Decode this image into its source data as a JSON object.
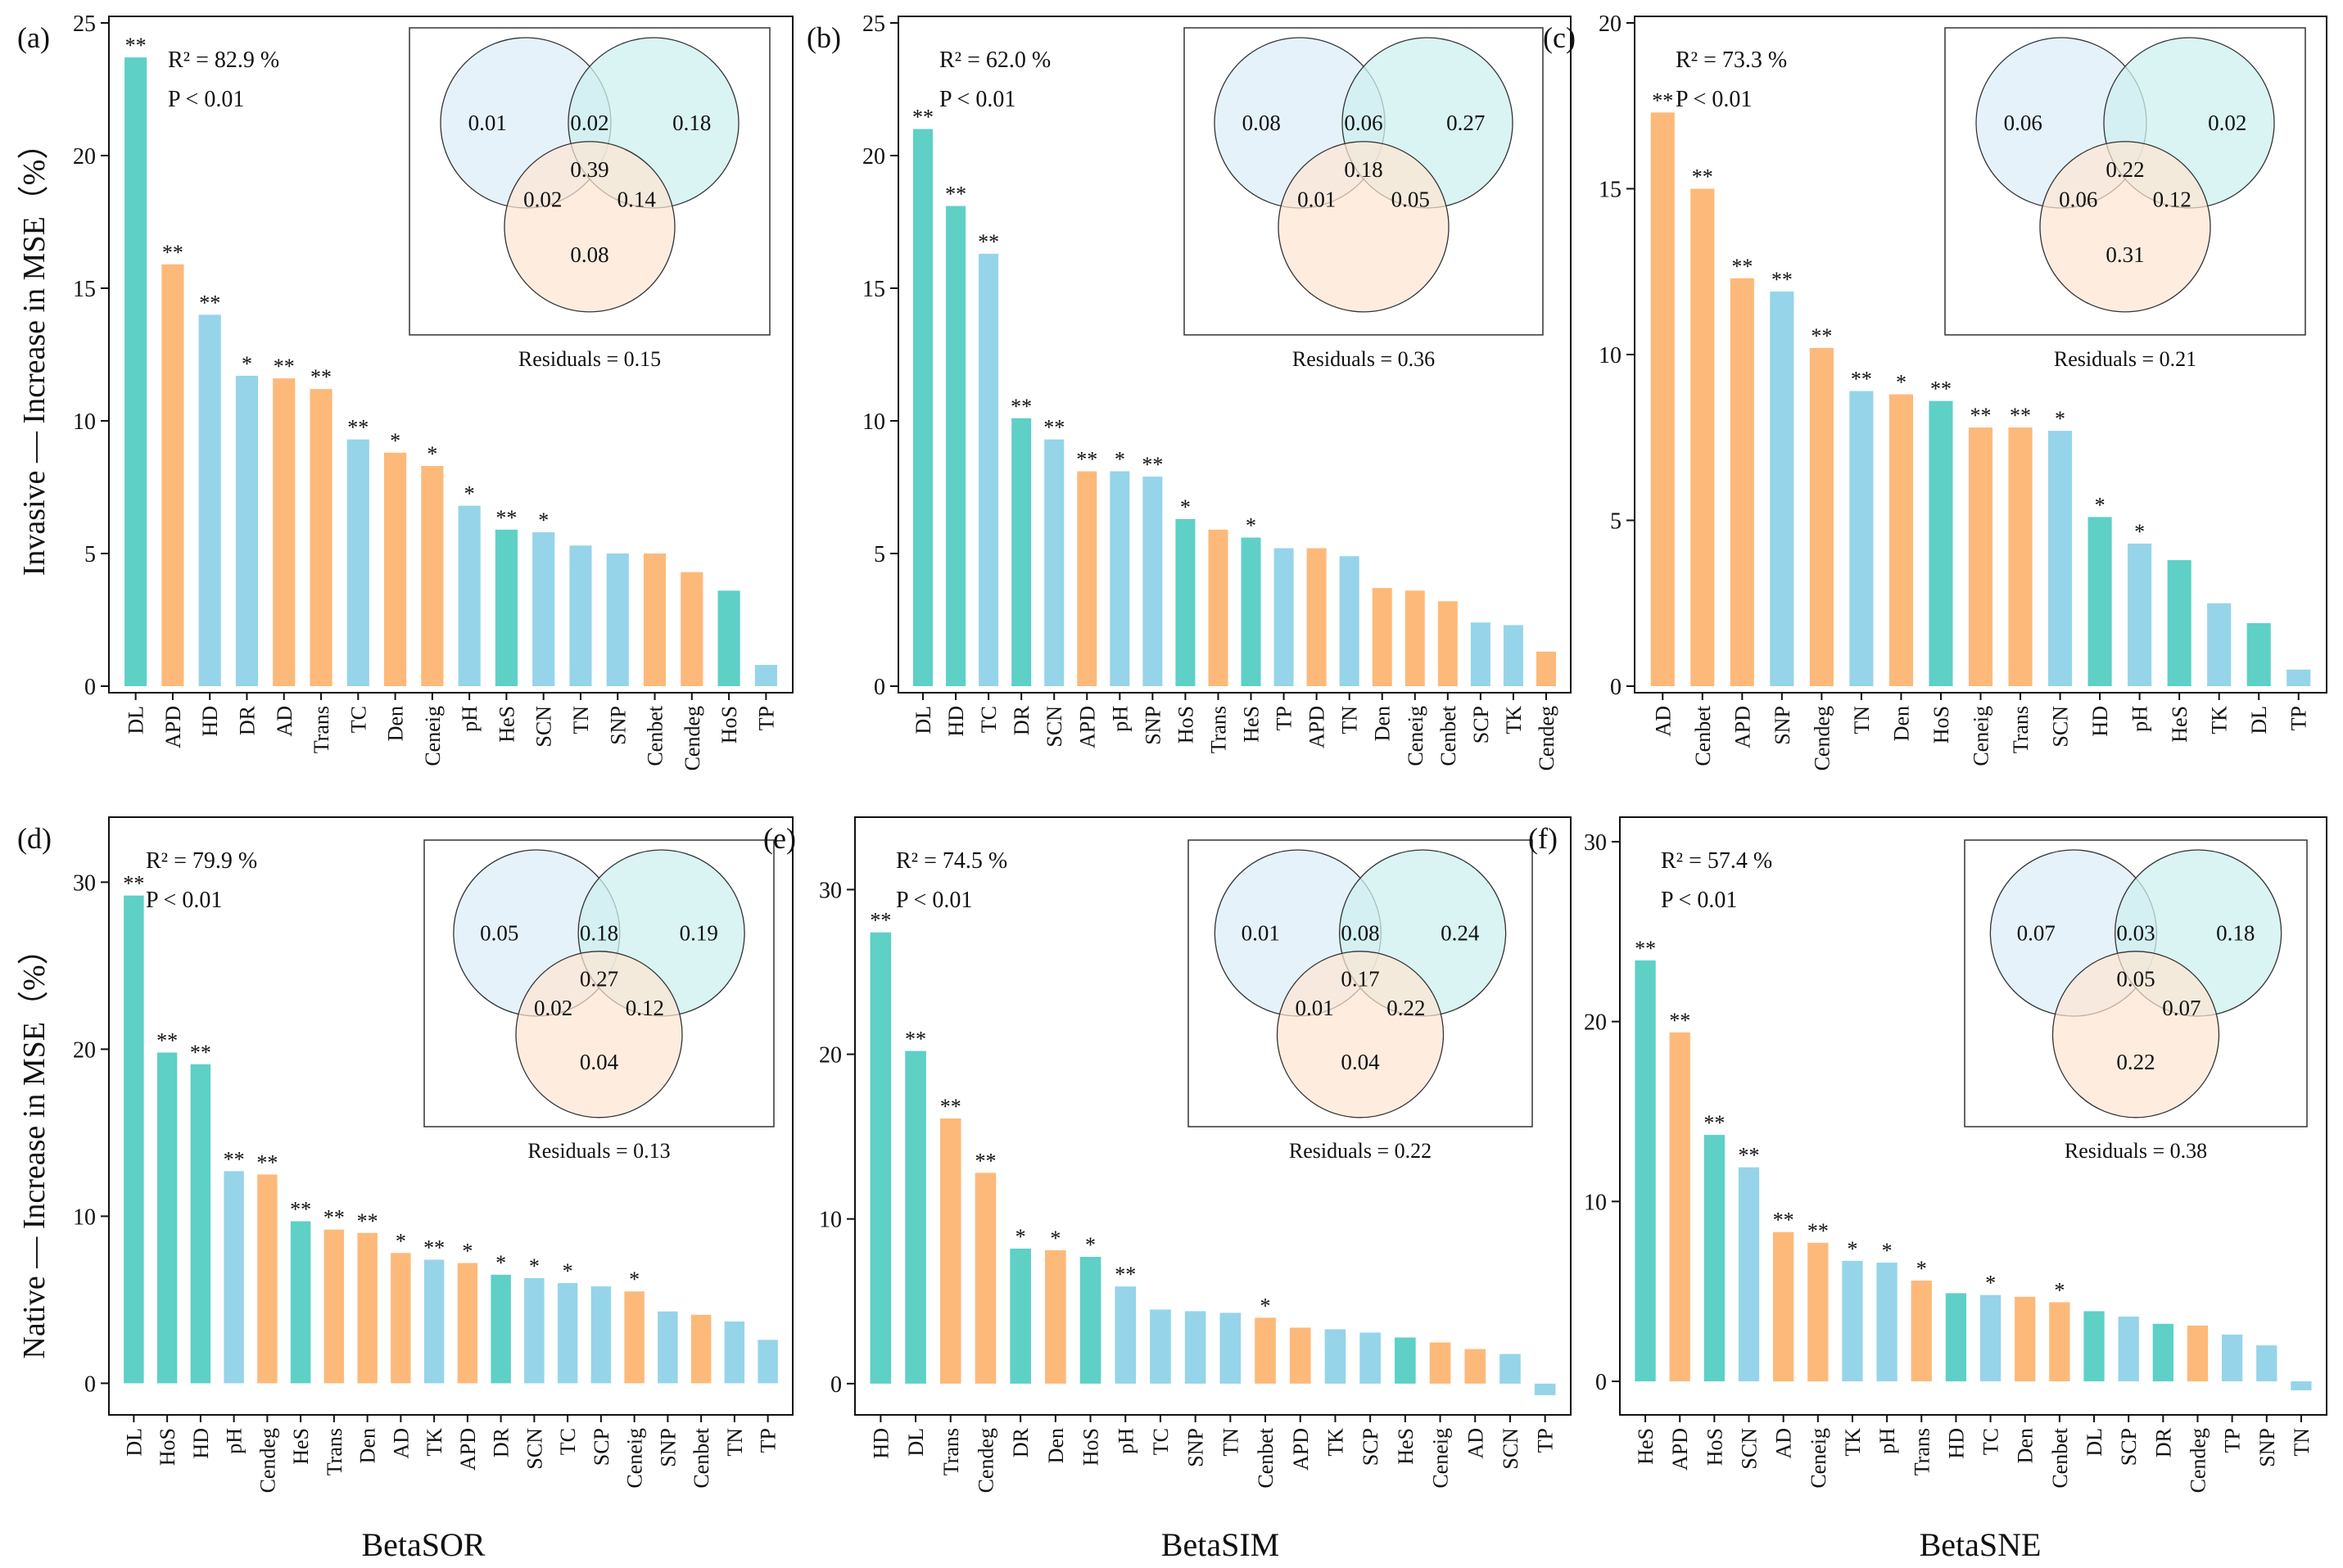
{
  "figure": {
    "row_labels": [
      "Invasive — Increase in MSE（%）",
      "Native — Increase in MSE（%）"
    ],
    "col_labels": [
      "BetaSOR",
      "BetaSIM",
      "BetaSNE"
    ]
  },
  "colors": {
    "teal": "#5ED0C6",
    "orange": "#FDB97A",
    "blue": "#96D4EA",
    "venn_blue": "#DDEEF8",
    "venn_teal": "#CDEFEF",
    "venn_orange": "#FDE6D2"
  },
  "chart_data": [
    {
      "type": "bar",
      "panel": "(a)",
      "ylim": [
        0,
        25
      ],
      "yticks": [
        0,
        5,
        10,
        15,
        20,
        25
      ],
      "r2": "R² =  82.9  %",
      "p": "P < 0.01",
      "categories": [
        "DL",
        "APD",
        "HD",
        "DR",
        "AD",
        "Trans",
        "TC",
        "Den",
        "Ceneig",
        "pH",
        "HeS",
        "SCN",
        "TN",
        "SNP",
        "Cenbet",
        "Cendeg",
        "HoS",
        "TP"
      ],
      "values": [
        23.7,
        15.9,
        14.0,
        11.7,
        11.6,
        11.2,
        9.3,
        8.8,
        8.3,
        6.8,
        5.9,
        5.8,
        5.3,
        5.0,
        5.0,
        4.3,
        3.6,
        0.8
      ],
      "colors": [
        "teal",
        "orange",
        "blue",
        "blue",
        "orange",
        "orange",
        "blue",
        "orange",
        "orange",
        "blue",
        "teal",
        "blue",
        "blue",
        "blue",
        "orange",
        "orange",
        "teal",
        "blue"
      ],
      "sig": [
        "**",
        "**",
        "**",
        "*",
        "**",
        "**",
        "**",
        "*",
        "*",
        "*",
        "**",
        "*",
        "",
        "",
        "",
        "",
        "",
        ""
      ],
      "venn": {
        "a": "0.01",
        "b": "0.18",
        "c": "0.08",
        "ab": "0.02",
        "ac": "0.02",
        "bc": "0.14",
        "abc": "0.39",
        "residuals": "Residuals = 0.15"
      }
    },
    {
      "type": "bar",
      "panel": "(b)",
      "ylim": [
        0,
        25
      ],
      "yticks": [
        0,
        5,
        10,
        15,
        20,
        25
      ],
      "r2": "R² = 62.0  %",
      "p": "P < 0.01",
      "categories": [
        "DL",
        "HD",
        "TC",
        "DR",
        "SCN",
        "APD",
        "pH",
        "SNP",
        "HoS",
        "Trans",
        "HeS",
        "TP",
        "APD",
        "TN",
        "Den",
        "Ceneig",
        "Cenbet",
        "SCP",
        "TK",
        "Cendeg"
      ],
      "values": [
        21.0,
        18.1,
        16.3,
        10.1,
        9.3,
        8.1,
        8.1,
        7.9,
        6.3,
        5.9,
        5.6,
        5.2,
        5.2,
        4.9,
        3.7,
        3.6,
        3.2,
        2.4,
        2.3,
        1.3
      ],
      "colors": [
        "teal",
        "teal",
        "blue",
        "teal",
        "blue",
        "orange",
        "blue",
        "blue",
        "teal",
        "orange",
        "teal",
        "blue",
        "orange",
        "blue",
        "orange",
        "orange",
        "orange",
        "blue",
        "blue",
        "orange"
      ],
      "sig": [
        "**",
        "**",
        "**",
        "**",
        "**",
        "**",
        "*",
        "**",
        "*",
        "",
        "*",
        "",
        "",
        "",
        "",
        "",
        "",
        "",
        "",
        ""
      ],
      "venn": {
        "a": "0.08",
        "b": "0.27",
        "c": "",
        "ab": "0.06",
        "ac": "0.01",
        "bc": "0.05",
        "abc": "0.18",
        "residuals": "Residuals = 0.36"
      }
    },
    {
      "type": "bar",
      "panel": "(c)",
      "ylim": [
        0,
        20
      ],
      "yticks": [
        0,
        5,
        10,
        15,
        20
      ],
      "r2": "R² = 73.3  %",
      "p": "P < 0.01",
      "categories": [
        "AD",
        "Cenbet",
        "APD",
        "SNP",
        "Cendeg",
        "TN",
        "Den",
        "HoS",
        "Ceneig",
        "Trans",
        "SCN",
        "HD",
        "pH",
        "HeS",
        "TK",
        "DL",
        "TP"
      ],
      "values": [
        17.3,
        15.0,
        12.3,
        11.9,
        10.2,
        8.9,
        8.8,
        8.6,
        7.8,
        7.8,
        7.7,
        5.1,
        4.3,
        3.8,
        2.5,
        1.9,
        0.5
      ],
      "colors": [
        "orange",
        "orange",
        "orange",
        "blue",
        "orange",
        "blue",
        "orange",
        "teal",
        "orange",
        "orange",
        "blue",
        "teal",
        "blue",
        "teal",
        "blue",
        "teal",
        "blue"
      ],
      "sig": [
        "**",
        "**",
        "**",
        "**",
        "**",
        "**",
        "*",
        "**",
        "**",
        "**",
        "*",
        "*",
        "*",
        "",
        "",
        "",
        ""
      ],
      "venn": {
        "a": "0.06",
        "b": "0.02",
        "c": "0.31",
        "ab": "",
        "ac": "0.06",
        "bc": "0.12",
        "abc": "0.22",
        "residuals": "Residuals = 0.21"
      }
    },
    {
      "type": "bar",
      "panel": "(d)",
      "ylim": [
        -1.5,
        35
      ],
      "yticks": [
        0,
        10,
        20,
        30
      ],
      "r2": "R² = 79.9   %",
      "p": "P < 0.01",
      "categories": [
        "DL",
        "HoS",
        "HD",
        "pH",
        "Cendeg",
        "HeS",
        "Trans",
        "Den",
        "AD",
        "TK",
        "APD",
        "DR",
        "SCN",
        "TC",
        "SCP",
        "Ceneig",
        "SNP",
        "Cenbet",
        "TN",
        "TP"
      ],
      "values": [
        29.2,
        19.8,
        19.1,
        12.7,
        12.5,
        9.7,
        9.2,
        9.0,
        7.8,
        7.4,
        7.2,
        6.5,
        6.3,
        6.0,
        5.8,
        5.5,
        4.3,
        4.1,
        3.7,
        2.6
      ],
      "colors": [
        "teal",
        "teal",
        "teal",
        "blue",
        "orange",
        "teal",
        "orange",
        "orange",
        "orange",
        "blue",
        "orange",
        "teal",
        "blue",
        "blue",
        "blue",
        "orange",
        "blue",
        "orange",
        "blue",
        "blue"
      ],
      "sig": [
        "**",
        "**",
        "**",
        "**",
        "**",
        "**",
        "**",
        "**",
        "*",
        "**",
        "*",
        "*",
        "*",
        "*",
        "",
        "*",
        "",
        "",
        "",
        ""
      ],
      "venn": {
        "a": "0.05",
        "b": "0.19",
        "c": "0.04",
        "ab": "0.18",
        "ac": "0.02",
        "bc": "0.12",
        "abc": "0.27",
        "residuals": "Residuals = 0.13"
      }
    },
    {
      "type": "bar",
      "panel": "(e)",
      "ylim": [
        -2,
        35
      ],
      "yticks": [
        0,
        10,
        20,
        30
      ],
      "r2": "R² = 74.5   %",
      "p": "P < 0.01",
      "categories": [
        "HD",
        "DL",
        "Trans",
        "Cendeg",
        "DR",
        "Den",
        "HoS",
        "pH",
        "TC",
        "SNP",
        "TN",
        "Cenbet",
        "APD",
        "TK",
        "SCP",
        "HeS",
        "Ceneig",
        "AD",
        "SCN",
        "TP"
      ],
      "values": [
        27.4,
        20.2,
        16.1,
        12.8,
        8.2,
        8.1,
        7.7,
        5.9,
        4.5,
        4.4,
        4.3,
        4.0,
        3.4,
        3.3,
        3.1,
        2.8,
        2.5,
        2.1,
        1.8,
        -0.7
      ],
      "colors": [
        "teal",
        "teal",
        "orange",
        "orange",
        "teal",
        "orange",
        "teal",
        "blue",
        "blue",
        "blue",
        "blue",
        "orange",
        "orange",
        "blue",
        "blue",
        "teal",
        "orange",
        "orange",
        "blue",
        "blue"
      ],
      "sig": [
        "**",
        "**",
        "**",
        "**",
        "*",
        "*",
        "*",
        "**",
        "",
        "",
        "",
        "*",
        "",
        "",
        "",
        "",
        "",
        "",
        "",
        ""
      ],
      "venn": {
        "a": "0.01",
        "b": "0.24",
        "c": "0.04",
        "ab": "0.08",
        "ac": "0.01",
        "bc": "0.22",
        "abc": "0.17",
        "residuals": "Residuals = 0.22"
      }
    },
    {
      "type": "bar",
      "panel": "(f)",
      "ylim": [
        -1.5,
        30
      ],
      "yticks": [
        0,
        10,
        20,
        30
      ],
      "r2": "R² = 57.4   %",
      "p": "P < 0.01",
      "categories": [
        "HeS",
        "APD",
        "HoS",
        "SCN",
        "AD",
        "Ceneig",
        "TK",
        "pH",
        "Trans",
        "HD",
        "TC",
        "Den",
        "Cenbet",
        "DL",
        "SCP",
        "DR",
        "Cendeg",
        "TP",
        "SNP",
        "TN"
      ],
      "values": [
        23.4,
        19.4,
        13.7,
        11.9,
        8.3,
        7.7,
        6.7,
        6.6,
        5.6,
        4.9,
        4.8,
        4.7,
        4.4,
        3.9,
        3.6,
        3.2,
        3.1,
        2.6,
        2.0,
        -0.5
      ],
      "colors": [
        "teal",
        "orange",
        "teal",
        "blue",
        "orange",
        "orange",
        "blue",
        "blue",
        "orange",
        "teal",
        "blue",
        "orange",
        "orange",
        "teal",
        "blue",
        "teal",
        "orange",
        "blue",
        "blue",
        "blue"
      ],
      "sig": [
        "**",
        "**",
        "**",
        "**",
        "**",
        "**",
        "*",
        "*",
        "*",
        "",
        "*",
        "",
        "*",
        "",
        "",
        "",
        "",
        "",
        "",
        ""
      ],
      "venn": {
        "a": "0.07",
        "b": "0.18",
        "c": "0.22",
        "ab": "0.03",
        "ac": "",
        "bc": "0.07",
        "abc": "0.05",
        "residuals": "Residuals = 0.38"
      }
    }
  ]
}
